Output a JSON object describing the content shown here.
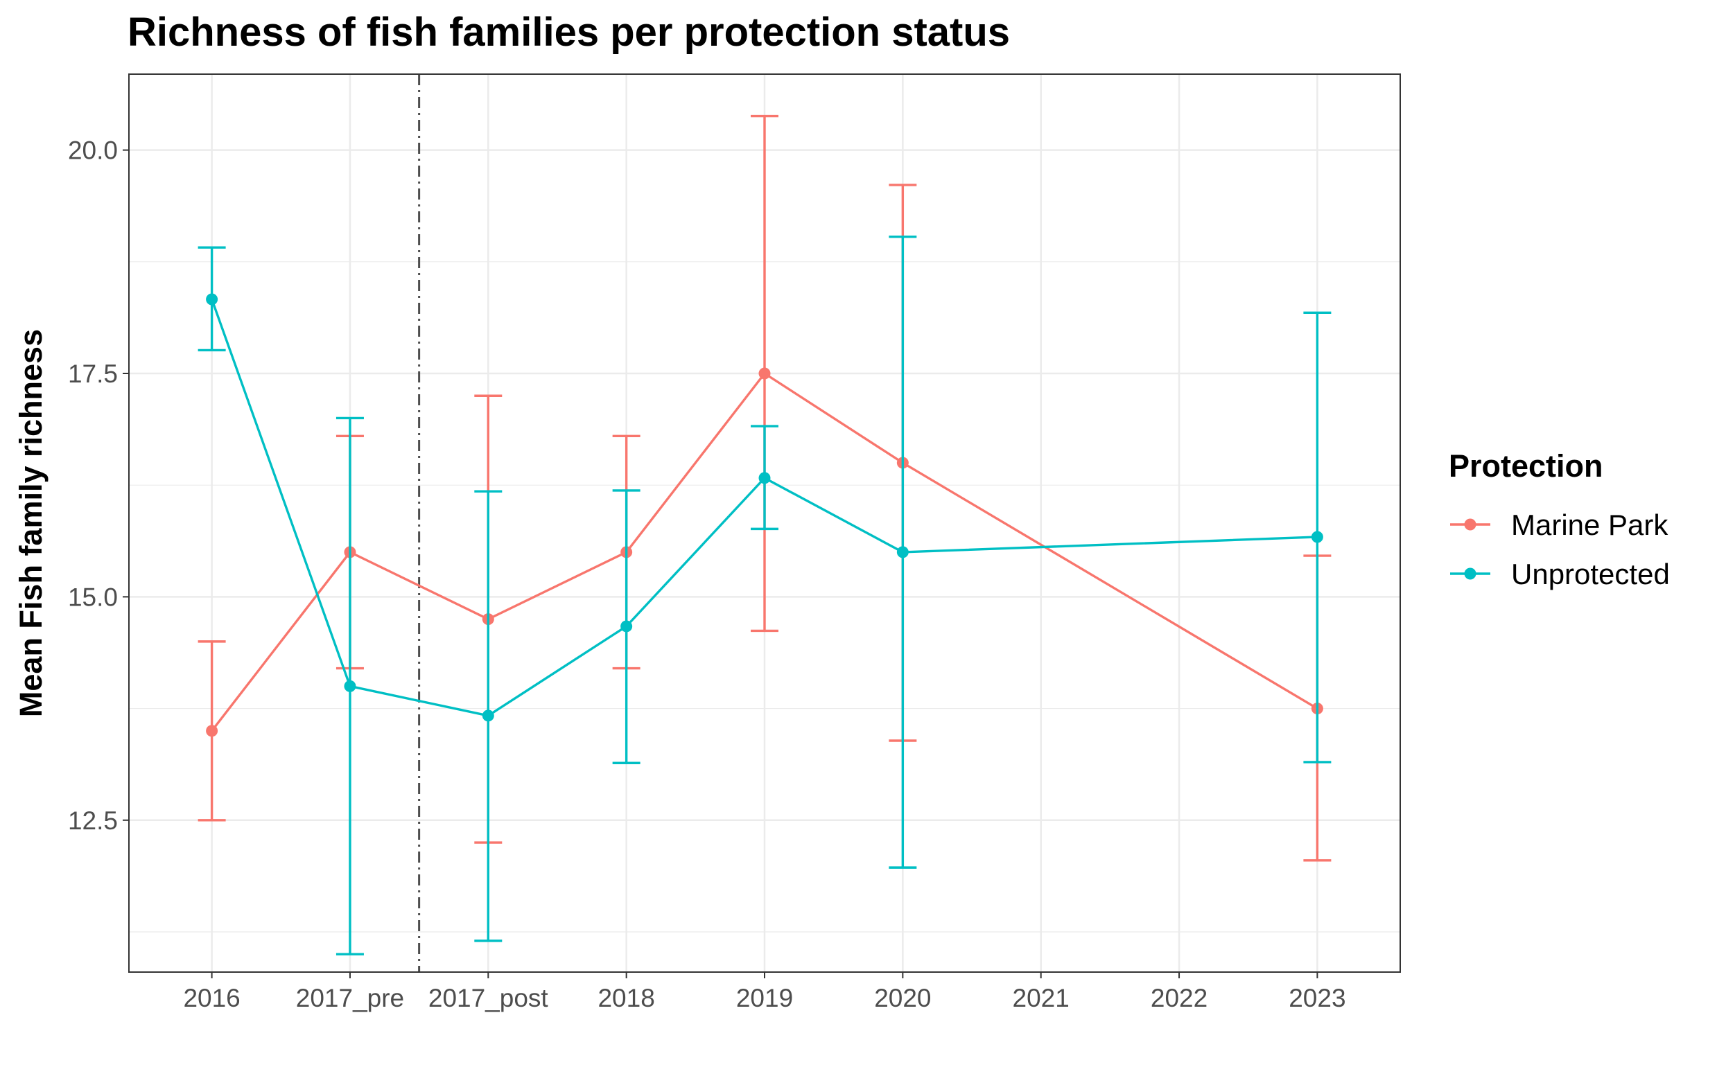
{
  "chart_data": {
    "type": "line",
    "title": "Richness of fish families per protection status",
    "ylabel": "Mean Fish family richness",
    "xlabel": "",
    "categories": [
      "2016",
      "2017_pre",
      "2017_post",
      "2018",
      "2019",
      "2020",
      "2021",
      "2022",
      "2023"
    ],
    "ylim": [
      10.8,
      20.85
    ],
    "yticks": [
      12.5,
      15.0,
      17.5,
      20.0
    ],
    "ytick_labels": [
      "12.5",
      "15.0",
      "17.5",
      "20.0"
    ],
    "vline_between": [
      "2017_pre",
      "2017_post"
    ],
    "grid": true,
    "legend": {
      "title": "Protection",
      "position": "right"
    },
    "series": [
      {
        "name": "Marine Park",
        "color": "#F8766D",
        "points": [
          {
            "x": "2016",
            "y": 13.5,
            "lo": 12.5,
            "hi": 14.5
          },
          {
            "x": "2017_pre",
            "y": 15.5,
            "lo": 14.2,
            "hi": 16.8
          },
          {
            "x": "2017_post",
            "y": 14.75,
            "lo": 12.25,
            "hi": 17.25
          },
          {
            "x": "2018",
            "y": 15.5,
            "lo": 14.2,
            "hi": 16.8
          },
          {
            "x": "2019",
            "y": 17.5,
            "lo": 14.62,
            "hi": 20.38
          },
          {
            "x": "2020",
            "y": 16.5,
            "lo": 13.39,
            "hi": 19.61
          },
          {
            "x": "2023",
            "y": 13.75,
            "lo": 12.05,
            "hi": 15.46
          }
        ]
      },
      {
        "name": "Unprotected",
        "color": "#00BFC4",
        "points": [
          {
            "x": "2016",
            "y": 18.33,
            "lo": 17.76,
            "hi": 18.91
          },
          {
            "x": "2017_pre",
            "y": 14.0,
            "lo": 11.0,
            "hi": 17.0
          },
          {
            "x": "2017_post",
            "y": 13.67,
            "lo": 11.15,
            "hi": 16.18
          },
          {
            "x": "2018",
            "y": 14.67,
            "lo": 13.14,
            "hi": 16.19
          },
          {
            "x": "2019",
            "y": 16.33,
            "lo": 15.76,
            "hi": 16.91
          },
          {
            "x": "2020",
            "y": 15.5,
            "lo": 11.97,
            "hi": 19.03
          },
          {
            "x": "2023",
            "y": 15.67,
            "lo": 13.15,
            "hi": 18.18
          }
        ]
      }
    ]
  }
}
